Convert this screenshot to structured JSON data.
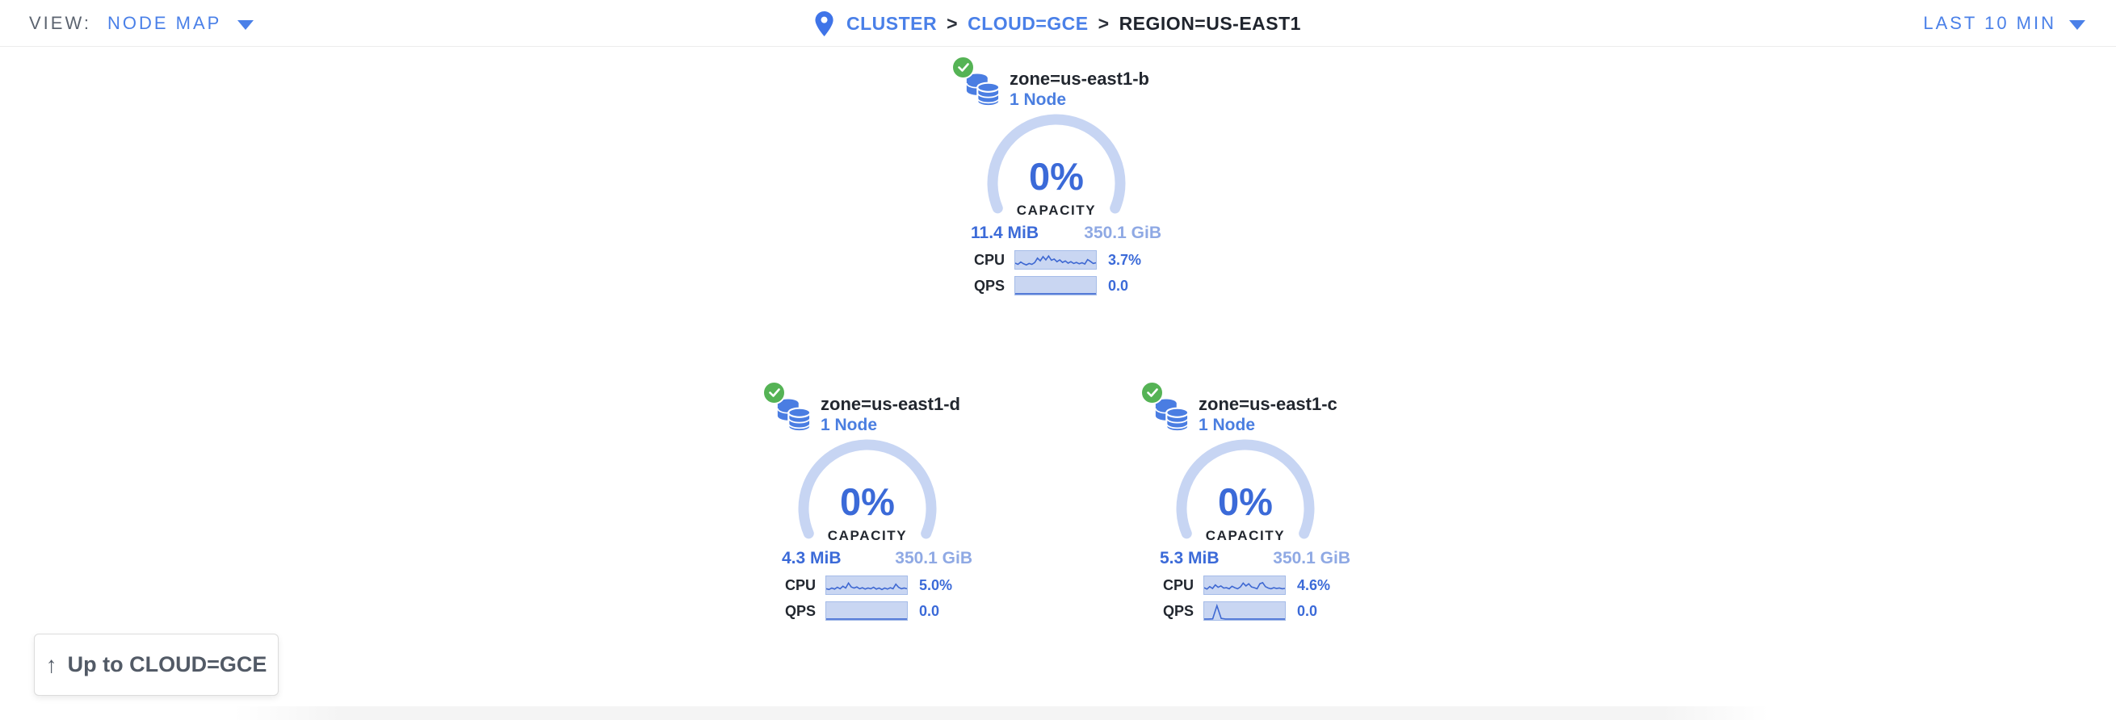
{
  "header": {
    "view_label": "VIEW:",
    "view_value": "NODE MAP",
    "breadcrumb": {
      "separator": ">",
      "items": [
        {
          "label": "CLUSTER"
        },
        {
          "label": "CLOUD=GCE"
        },
        {
          "label": "REGION=US-EAST1"
        }
      ]
    },
    "time_range": "LAST 10 MIN"
  },
  "zones": [
    {
      "name": "zone=us-east1-b",
      "nodes": "1 Node",
      "capacity_pct": "0%",
      "capacity_label": "CAPACITY",
      "used": "11.4 MiB",
      "total": "350.1 GiB",
      "cpu_label": "CPU",
      "cpu_value": "3.7%",
      "qps_label": "QPS",
      "qps_value": "0.0",
      "cpu_spark": [
        0.32,
        0.25,
        0.38,
        0.28,
        0.22,
        0.3,
        0.25,
        0.35,
        0.6,
        0.45,
        0.68,
        0.5,
        0.72,
        0.48,
        0.55,
        0.4,
        0.5,
        0.36,
        0.44,
        0.32,
        0.4,
        0.3,
        0.36,
        0.28,
        0.34,
        0.27,
        0.52,
        0.42,
        0.3,
        0.34
      ],
      "qps_spark": [
        0.05,
        0.05,
        0.05,
        0.05,
        0.05,
        0.05,
        0.05,
        0.05,
        0.05,
        0.05,
        0.05,
        0.05,
        0.05,
        0.05,
        0.05,
        0.05,
        0.05,
        0.05,
        0.05,
        0.05
      ]
    },
    {
      "name": "zone=us-east1-d",
      "nodes": "1 Node",
      "capacity_pct": "0%",
      "capacity_label": "CAPACITY",
      "used": "4.3 MiB",
      "total": "350.1 GiB",
      "cpu_label": "CPU",
      "cpu_value": "5.0%",
      "qps_label": "QPS",
      "qps_value": "0.0",
      "cpu_spark": [
        0.3,
        0.26,
        0.34,
        0.28,
        0.38,
        0.3,
        0.44,
        0.34,
        0.62,
        0.4,
        0.34,
        0.4,
        0.3,
        0.36,
        0.28,
        0.34,
        0.3,
        0.38,
        0.28,
        0.34,
        0.26,
        0.34,
        0.28,
        0.36,
        0.3,
        0.56,
        0.38,
        0.3,
        0.34,
        0.3
      ],
      "qps_spark": [
        0.05,
        0.05,
        0.05,
        0.05,
        0.05,
        0.05,
        0.05,
        0.05,
        0.05,
        0.05,
        0.05,
        0.05,
        0.05,
        0.05,
        0.05,
        0.05,
        0.05,
        0.05,
        0.05,
        0.05
      ]
    },
    {
      "name": "zone=us-east1-c",
      "nodes": "1 Node",
      "capacity_pct": "0%",
      "capacity_label": "CAPACITY",
      "used": "5.3 MiB",
      "total": "350.1 GiB",
      "cpu_label": "CPU",
      "cpu_value": "4.6%",
      "qps_label": "QPS",
      "qps_value": "0.0",
      "cpu_spark": [
        0.36,
        0.28,
        0.42,
        0.32,
        0.52,
        0.38,
        0.46,
        0.34,
        0.36,
        0.3,
        0.44,
        0.36,
        0.3,
        0.4,
        0.62,
        0.46,
        0.58,
        0.4,
        0.36,
        0.3,
        0.58,
        0.64,
        0.42,
        0.34,
        0.3,
        0.36,
        0.32,
        0.34,
        0.3,
        0.32
      ],
      "qps_spark": [
        0.05,
        0.05,
        0.06,
        0.8,
        0.08,
        0.05,
        0.05,
        0.05,
        0.05,
        0.05,
        0.05,
        0.05,
        0.05,
        0.05,
        0.05,
        0.05,
        0.05,
        0.05,
        0.05,
        0.05
      ]
    }
  ],
  "up_button_label": "Up to CLOUD=GCE",
  "colors": {
    "link_blue": "#4a80e8",
    "value_blue": "#3b6ad8",
    "muted_blue": "#8fa9e4",
    "gauge_arc": "#c7d5f3",
    "spark_bg": "#c9d6f2",
    "status_green": "#55b355",
    "icon_blue": "#4a7de2"
  }
}
